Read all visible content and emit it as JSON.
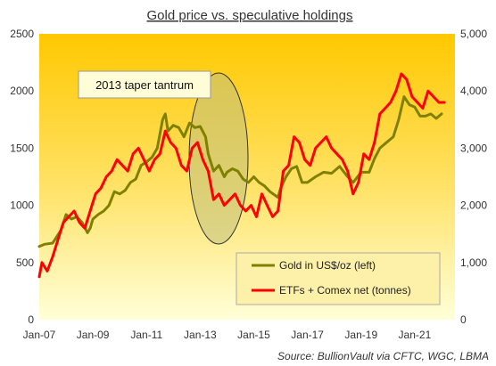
{
  "chart_data": {
    "type": "line",
    "title": "Gold price vs. speculative holdings",
    "source": "Source: BullionVault via CFTC, WGC, LBMA",
    "x_ticks": [
      "Jan-07",
      "Jan-09",
      "Jan-11",
      "Jan-13",
      "Jan-15",
      "Jan-17",
      "Jan-19",
      "Jan-21"
    ],
    "y_left": {
      "ticks": [
        "0",
        "500",
        "1000",
        "1500",
        "2000",
        "2500"
      ],
      "lim": [
        0,
        2500
      ]
    },
    "y_right": {
      "ticks": [
        "0",
        "1,000",
        "2,000",
        "3,000",
        "4,000",
        "5,000"
      ],
      "lim": [
        0,
        5000
      ]
    },
    "x_range": [
      2007.0,
      2022.5
    ],
    "annotation": "2013 taper tantrum",
    "series": [
      {
        "name": "Gold in US$/oz (left)",
        "axis": "left",
        "color": "#808000",
        "x": [
          2007.0,
          2007.2,
          2007.5,
          2007.8,
          2008.0,
          2008.2,
          2008.4,
          2008.6,
          2008.8,
          2008.9,
          2009.0,
          2009.2,
          2009.4,
          2009.6,
          2009.8,
          2010.0,
          2010.2,
          2010.4,
          2010.6,
          2010.8,
          2011.0,
          2011.2,
          2011.4,
          2011.6,
          2011.7,
          2011.8,
          2012.0,
          2012.2,
          2012.4,
          2012.6,
          2012.8,
          2013.0,
          2013.2,
          2013.3,
          2013.5,
          2013.7,
          2013.9,
          2014.0,
          2014.2,
          2014.4,
          2014.6,
          2014.8,
          2015.0,
          2015.2,
          2015.4,
          2015.6,
          2015.9,
          2016.0,
          2016.2,
          2016.4,
          2016.6,
          2016.8,
          2017.0,
          2017.3,
          2017.6,
          2017.9,
          2018.2,
          2018.5,
          2018.7,
          2019.0,
          2019.3,
          2019.5,
          2019.7,
          2020.0,
          2020.2,
          2020.4,
          2020.6,
          2020.8,
          2021.0,
          2021.2,
          2021.4,
          2021.6,
          2021.8,
          2022.0
        ],
        "values": [
          640,
          660,
          670,
          780,
          920,
          880,
          900,
          850,
          760,
          800,
          880,
          920,
          950,
          1000,
          1120,
          1100,
          1130,
          1200,
          1230,
          1350,
          1380,
          1420,
          1500,
          1750,
          1800,
          1650,
          1700,
          1680,
          1600,
          1720,
          1680,
          1690,
          1600,
          1450,
          1300,
          1350,
          1250,
          1290,
          1320,
          1300,
          1230,
          1200,
          1250,
          1200,
          1170,
          1120,
          1070,
          1150,
          1250,
          1320,
          1340,
          1200,
          1200,
          1250,
          1290,
          1280,
          1340,
          1250,
          1200,
          1290,
          1290,
          1410,
          1500,
          1560,
          1600,
          1750,
          1950,
          1880,
          1860,
          1780,
          1780,
          1800,
          1760,
          1800
        ]
      },
      {
        "name": "ETFs + Comex net (tonnes)",
        "axis": "right",
        "color": "#ff0000",
        "x": [
          2007.0,
          2007.1,
          2007.3,
          2007.5,
          2007.7,
          2007.9,
          2008.1,
          2008.3,
          2008.5,
          2008.7,
          2008.9,
          2009.1,
          2009.3,
          2009.5,
          2009.7,
          2009.9,
          2010.1,
          2010.3,
          2010.5,
          2010.7,
          2010.9,
          2011.1,
          2011.3,
          2011.5,
          2011.7,
          2011.9,
          2012.1,
          2012.3,
          2012.5,
          2012.7,
          2012.9,
          2013.1,
          2013.3,
          2013.5,
          2013.7,
          2013.9,
          2014.1,
          2014.3,
          2014.5,
          2014.7,
          2014.9,
          2015.1,
          2015.3,
          2015.5,
          2015.7,
          2015.9,
          2016.1,
          2016.3,
          2016.5,
          2016.7,
          2016.9,
          2017.1,
          2017.3,
          2017.5,
          2017.7,
          2017.9,
          2018.1,
          2018.3,
          2018.5,
          2018.7,
          2018.9,
          2019.1,
          2019.3,
          2019.5,
          2019.7,
          2019.9,
          2020.1,
          2020.3,
          2020.5,
          2020.7,
          2020.9,
          2021.1,
          2021.3,
          2021.5,
          2021.7,
          2021.9,
          2022.1
        ],
        "values": [
          750,
          1000,
          850,
          1100,
          1400,
          1700,
          1800,
          1900,
          1700,
          1600,
          1900,
          2200,
          2300,
          2500,
          2600,
          2800,
          2700,
          2600,
          2900,
          3000,
          2800,
          2600,
          2800,
          2900,
          3300,
          3100,
          3000,
          2700,
          2600,
          3000,
          3100,
          2800,
          2600,
          2100,
          2200,
          2000,
          2100,
          2200,
          2000,
          1900,
          2000,
          1800,
          2200,
          2000,
          1800,
          1900,
          2600,
          2700,
          3200,
          3100,
          2800,
          2700,
          3000,
          3100,
          3200,
          3000,
          2900,
          2800,
          2600,
          2200,
          2400,
          2900,
          2800,
          3100,
          3600,
          3700,
          3800,
          4000,
          4300,
          4200,
          3900,
          3800,
          3700,
          4000,
          3900,
          3800,
          3800
        ]
      }
    ],
    "legend_placement": "bottom-right",
    "grid": false
  },
  "colors": {
    "background_top": "#ffc800",
    "background_bottom": "#ffffd8",
    "legend_bg": "#fdf0a8",
    "annotation_bg": "#fffcd8",
    "ellipse_fill": "#bfbf80"
  }
}
